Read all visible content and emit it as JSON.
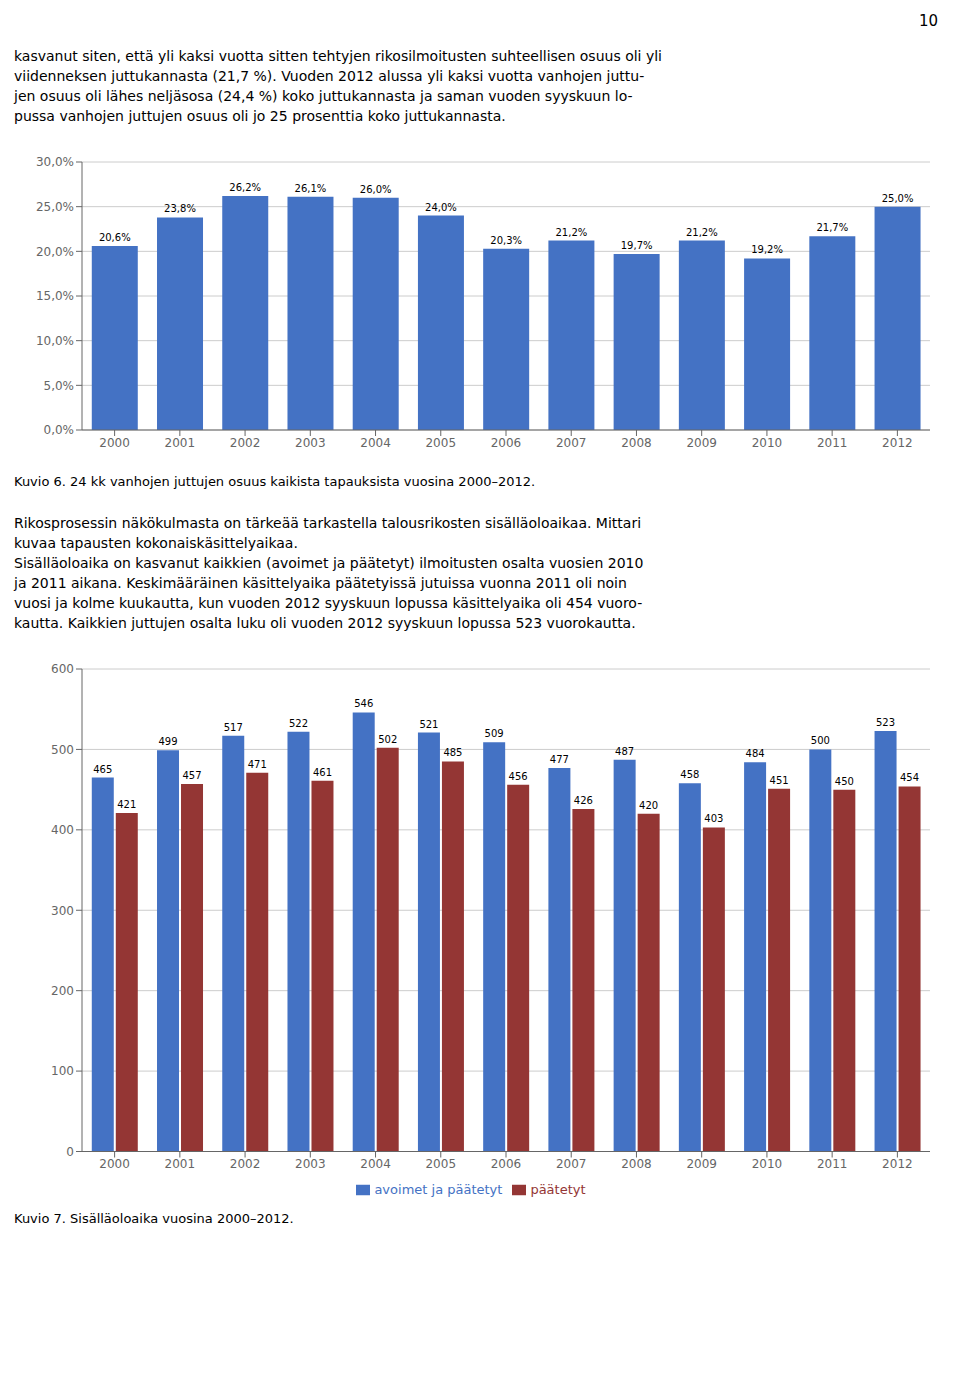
{
  "page_number": "10",
  "chart_data": [
    {
      "type": "bar",
      "title": "Kuvio 6. 24 kk vanhojen juttujen osuus kaikista tapauksista vuosina 2000–2012.",
      "annotations": [
        "kasvanut siten, että yli kaksi vuotta sitten tehtyjen rikosilmoitusten suhteellisen osuus oli yli",
        "viidenneksen juttukannasta (21,7 %). Vuoden 2012 alussa yli kaksi vuotta vanhojen juttu-",
        "jen osuus oli lähes neljäsosa (24,4 %) koko juttukannasta ja saman vuoden syyskuun lo-",
        "pussa vanhojen juttujen osuus oli jo 25 prosenttia koko juttukannasta."
      ],
      "categories": [
        "2000",
        "2001",
        "2002",
        "2003",
        "2004",
        "2005",
        "2006",
        "2007",
        "2008",
        "2009",
        "2010",
        "2011",
        "2012"
      ],
      "values": [
        20.6,
        23.8,
        26.2,
        26.1,
        26.0,
        24.0,
        20.3,
        21.2,
        19.7,
        21.2,
        19.2,
        21.7,
        25.0
      ],
      "value_labels": [
        "20,6%",
        "23,8%",
        "26,2%",
        "26,1%",
        "26,0%",
        "24,0%",
        "20,3%",
        "21,2%",
        "19,7%",
        "21,2%",
        "19,2%",
        "21,7%",
        "25,0%"
      ],
      "color": "#4472C4",
      "ylim": [
        0,
        30
      ],
      "yticks": [
        {
          "value": 0,
          "label": "0,0%"
        },
        {
          "value": 5,
          "label": "5,0%"
        },
        {
          "value": 10,
          "label": "10,0%"
        },
        {
          "value": 15,
          "label": "15,0%"
        },
        {
          "value": 20,
          "label": "20,0%"
        },
        {
          "value": 25,
          "label": "25,0%"
        },
        {
          "value": 30,
          "label": "30,0%"
        }
      ],
      "grid": true,
      "data_labels": true
    },
    {
      "type": "bar",
      "title": "Kuvio 7. Sisälläoloaika vuosina 2000–2012.",
      "annotations": [
        "Rikosprosessin näkökulmasta on tärkeää tarkastella talousrikosten sisälläoloaikaa. Mittari",
        "kuvaa tapausten kokonaiskäsittelyaikaa.",
        "Sisälläoloaika on kasvanut kaikkien (avoimet ja päätetyt) ilmoitusten osalta vuosien 2010",
        "ja 2011 aikana. Keskimääräinen käsittelyaika päätetyissä jutuissa vuonna 2011 oli noin",
        "vuosi ja kolme kuukautta, kun vuoden 2012 syyskuun lopussa käsittelyaika oli 454 vuoro-",
        "kautta. Kaikkien juttujen osalta luku oli vuoden 2012 syyskuun lopussa 523 vuorokautta."
      ],
      "categories": [
        "2000",
        "2001",
        "2002",
        "2003",
        "2004",
        "2005",
        "2006",
        "2007",
        "2008",
        "2009",
        "2010",
        "2011",
        "2012"
      ],
      "series": [
        {
          "name": "avoimet ja päätetyt",
          "color": "#4472C4",
          "values": [
            465,
            499,
            517,
            522,
            546,
            521,
            509,
            477,
            487,
            458,
            484,
            500,
            523
          ]
        },
        {
          "name": "päätetyt",
          "color": "#943634",
          "values": [
            421,
            457,
            471,
            461,
            502,
            485,
            456,
            426,
            420,
            403,
            451,
            450,
            454
          ]
        }
      ],
      "ylim": [
        0,
        600
      ],
      "yticks": [
        0,
        100,
        200,
        300,
        400,
        500,
        600
      ],
      "grid": true,
      "legend": "bottom",
      "data_labels": true
    }
  ]
}
